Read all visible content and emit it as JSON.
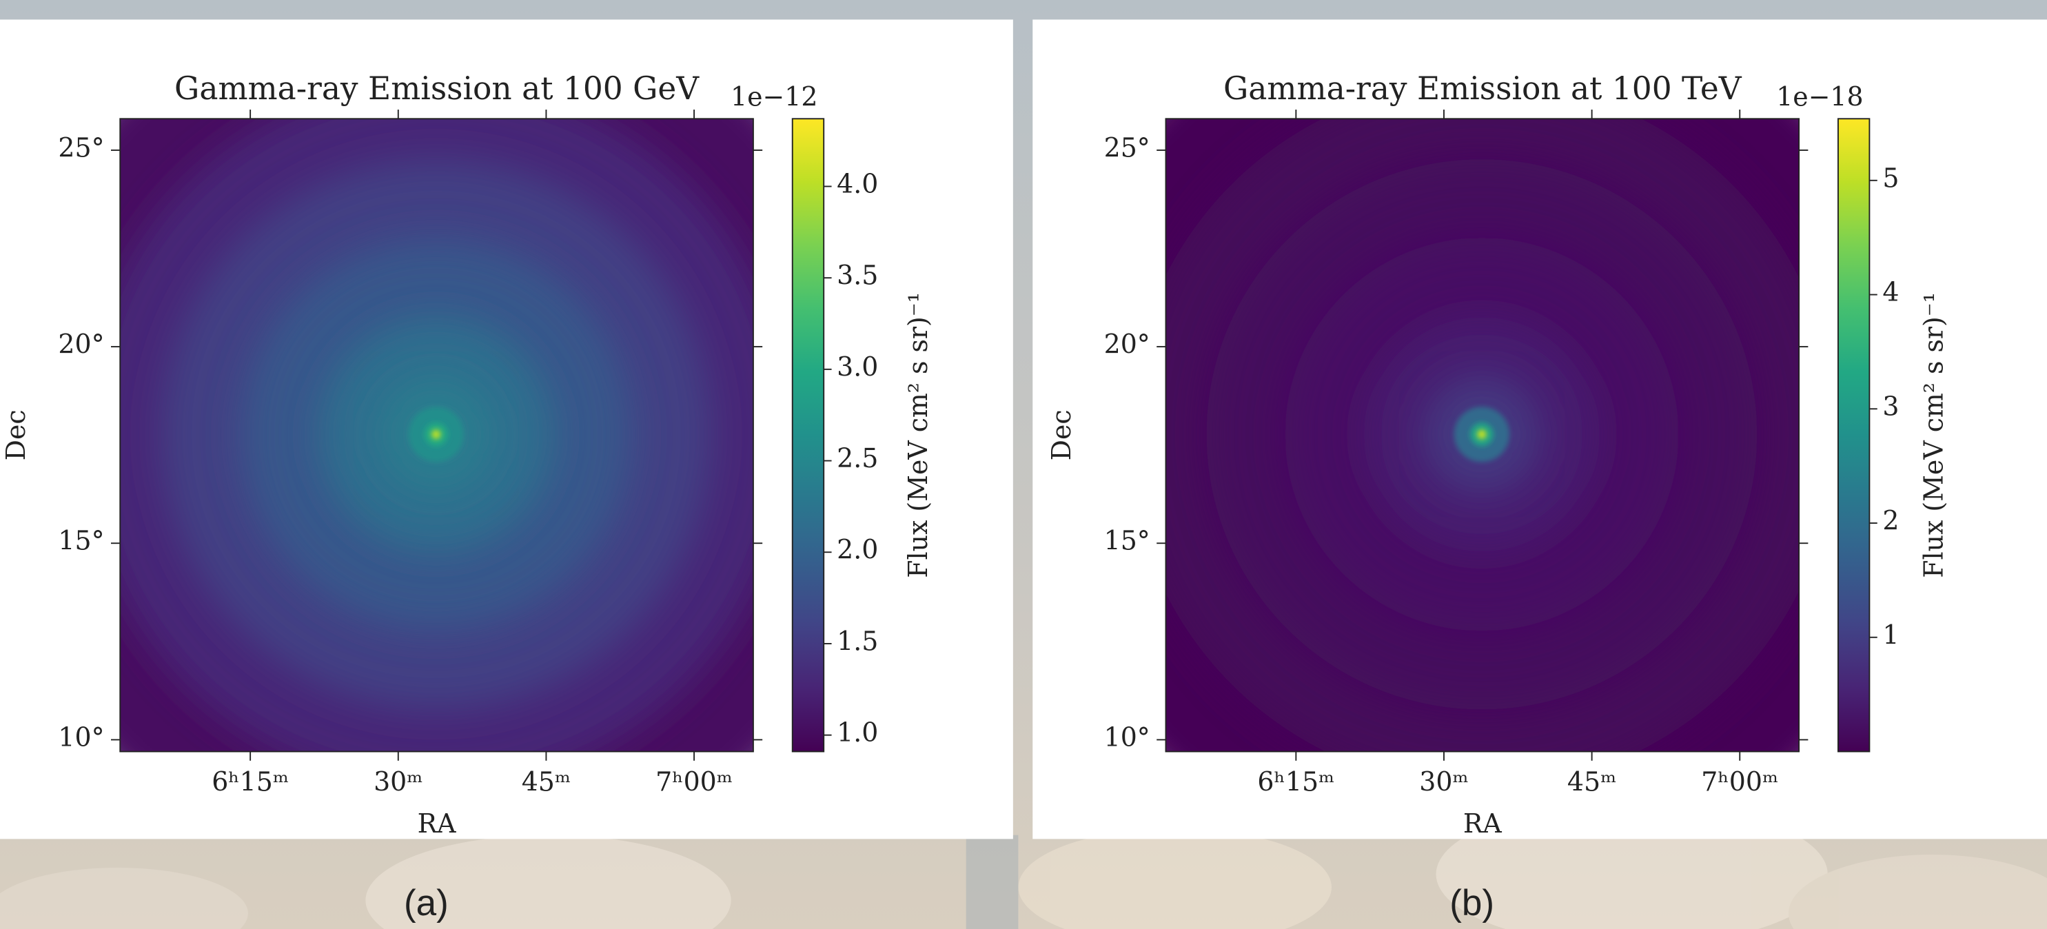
{
  "chart_data": [
    {
      "type": "heatmap",
      "title": "Gamma-ray Emission at 100 GeV",
      "xlabel": "RA",
      "ylabel": "Dec",
      "xlim": [
        6.03,
        7.1
      ],
      "xticks": [
        {
          "value": 6.25,
          "label": "6ʰ15ᵐ"
        },
        {
          "value": 6.5,
          "label": "30ᵐ"
        },
        {
          "value": 6.75,
          "label": "45ᵐ"
        },
        {
          "value": 7.0,
          "label": "7ʰ00ᵐ"
        }
      ],
      "ylim": [
        9.7,
        25.8
      ],
      "yticks": [
        {
          "value": 10,
          "label": "10°"
        },
        {
          "value": 15,
          "label": "15°"
        },
        {
          "value": 20,
          "label": "20°"
        },
        {
          "value": 25,
          "label": "25°"
        }
      ],
      "colormap": "viridis",
      "colorbar": {
        "label": "Flux (MeV cm² s sr)⁻¹",
        "offset_text": "1e−12",
        "lim": [
          0.91,
          4.37
        ],
        "ticks": [
          {
            "value": 1,
            "label": "1.0"
          },
          {
            "value": 1.5,
            "label": "1.5"
          },
          {
            "value": 2,
            "label": "2.0"
          },
          {
            "value": 2.5,
            "label": "2.5"
          },
          {
            "value": 3,
            "label": "3.0"
          },
          {
            "value": 3.5,
            "label": "3.5"
          },
          {
            "value": 4,
            "label": "4.0"
          }
        ]
      },
      "source": {
        "x": 6.564,
        "y": 17.77
      },
      "profile": {
        "radius": [
          0.12,
          0.3,
          0.7,
          1.5,
          3,
          5,
          7,
          9,
          12
        ],
        "values": [
          4.0,
          3.0,
          2.6,
          2.35,
          2.15,
          1.85,
          1.55,
          1.3,
          1.05
        ]
      },
      "panel_label": "(a)"
    },
    {
      "type": "heatmap",
      "title": "Gamma-ray Emission at 100 TeV",
      "xlabel": "RA",
      "ylabel": "Dec",
      "xlim": [
        6.03,
        7.1
      ],
      "xticks": [
        {
          "value": 6.25,
          "label": "6ʰ15ᵐ"
        },
        {
          "value": 6.5,
          "label": "30ᵐ"
        },
        {
          "value": 6.75,
          "label": "45ᵐ"
        },
        {
          "value": 7.0,
          "label": "7ʰ00ᵐ"
        }
      ],
      "ylim": [
        9.7,
        25.8
      ],
      "yticks": [
        {
          "value": 10,
          "label": "10°"
        },
        {
          "value": 15,
          "label": "15°"
        },
        {
          "value": 20,
          "label": "20°"
        },
        {
          "value": 25,
          "label": "25°"
        }
      ],
      "colormap": "viridis",
      "colorbar": {
        "label": "Flux (MeV cm² s sr)⁻¹",
        "offset_text": "1e−18",
        "lim": [
          0,
          5.54
        ],
        "ticks": [
          1,
          2,
          3,
          4,
          5
        ]
      },
      "source": {
        "x": 6.564,
        "y": 17.77
      },
      "profile": {
        "radius": [
          0.12,
          0.3,
          0.7,
          1.5,
          3,
          5,
          7,
          9,
          12
        ],
        "values": [
          5.0,
          3.2,
          1.9,
          0.9,
          0.45,
          0.25,
          0.15,
          0.1,
          0.05
        ]
      },
      "panel_label": "(b)"
    }
  ]
}
